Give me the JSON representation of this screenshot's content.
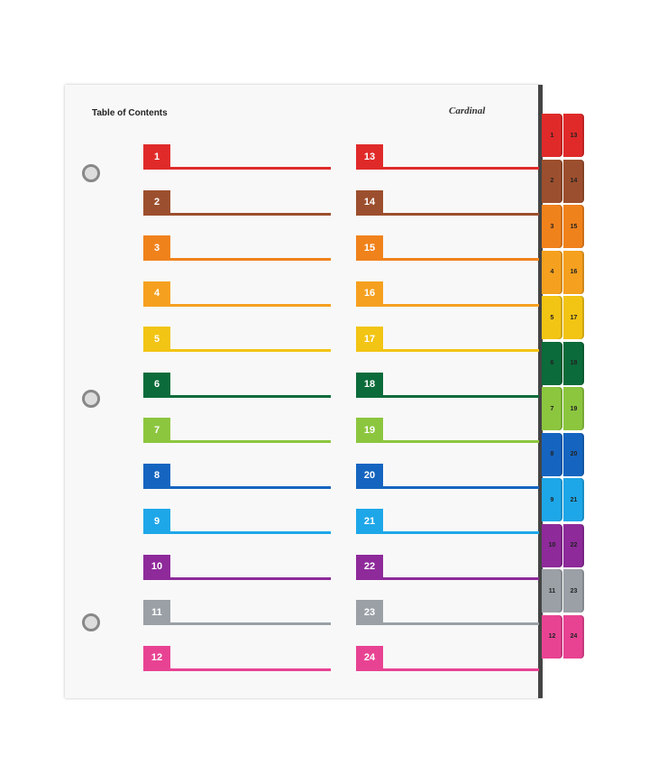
{
  "title": "Table of Contents",
  "logo": "Cardinal",
  "entries": [
    {
      "n": "1",
      "color": "#e02a2a"
    },
    {
      "n": "2",
      "color": "#9c4f2e"
    },
    {
      "n": "3",
      "color": "#f0821c"
    },
    {
      "n": "4",
      "color": "#f5a01f"
    },
    {
      "n": "5",
      "color": "#f2c414"
    },
    {
      "n": "6",
      "color": "#0b6b3a"
    },
    {
      "n": "7",
      "color": "#8cc63f"
    },
    {
      "n": "8",
      "color": "#1565c0"
    },
    {
      "n": "9",
      "color": "#1ea7e8"
    },
    {
      "n": "10",
      "color": "#8e2a9a"
    },
    {
      "n": "11",
      "color": "#9aa0a6"
    },
    {
      "n": "12",
      "color": "#e84393"
    },
    {
      "n": "13",
      "color": "#e02a2a"
    },
    {
      "n": "14",
      "color": "#9c4f2e"
    },
    {
      "n": "15",
      "color": "#f0821c"
    },
    {
      "n": "16",
      "color": "#f5a01f"
    },
    {
      "n": "17",
      "color": "#f2c414"
    },
    {
      "n": "18",
      "color": "#0b6b3a"
    },
    {
      "n": "19",
      "color": "#8cc63f"
    },
    {
      "n": "20",
      "color": "#1565c0"
    },
    {
      "n": "21",
      "color": "#1ea7e8"
    },
    {
      "n": "22",
      "color": "#8e2a9a"
    },
    {
      "n": "23",
      "color": "#9aa0a6"
    },
    {
      "n": "24",
      "color": "#e84393"
    }
  ]
}
